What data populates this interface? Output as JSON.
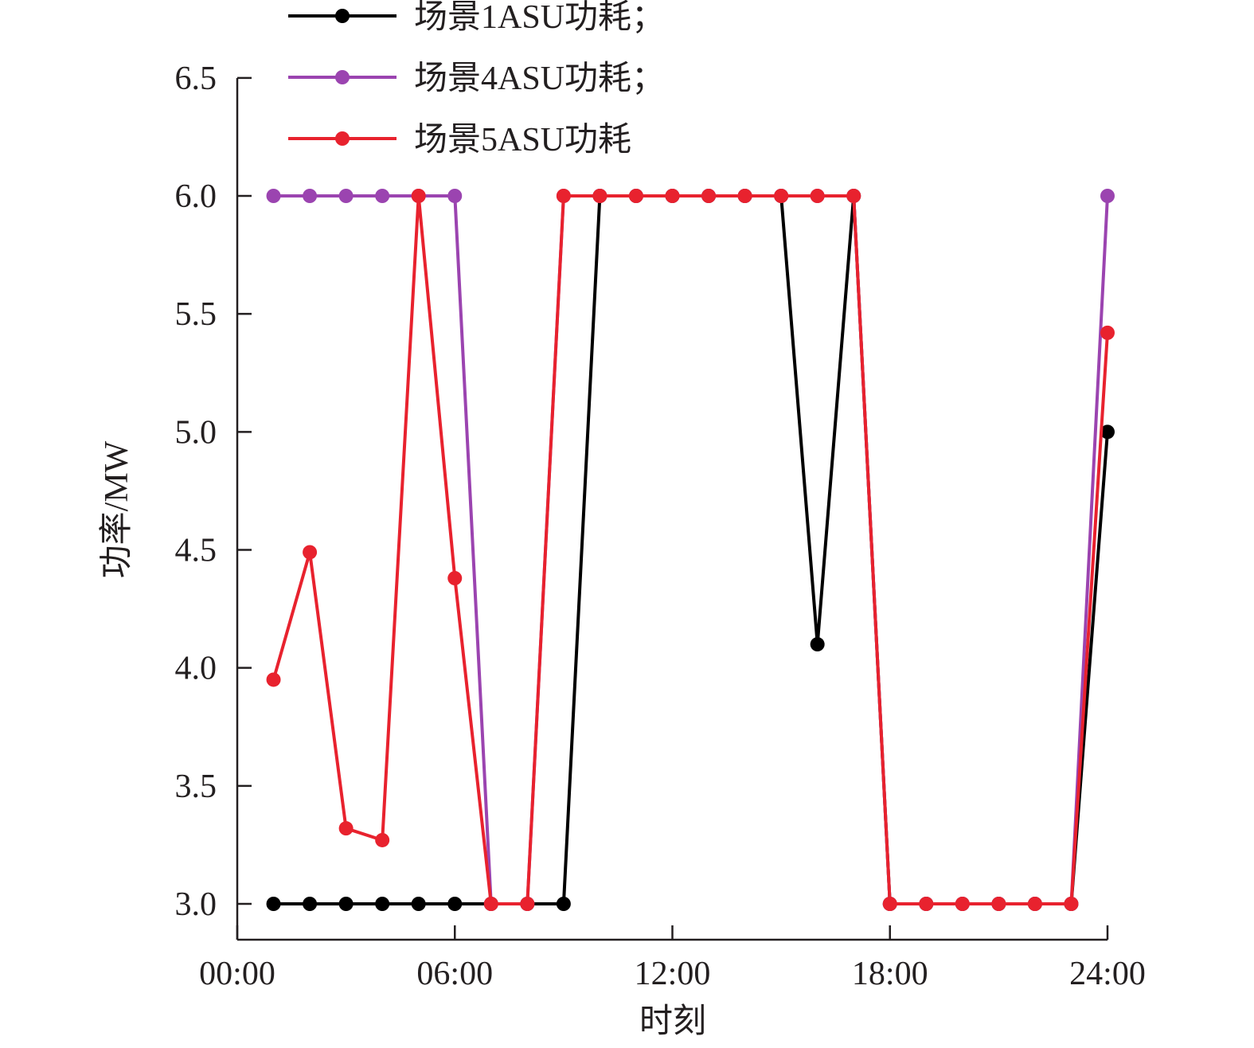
{
  "chart_data": {
    "type": "line",
    "xlabel": "时刻",
    "ylabel": "功率/MW",
    "xlim": [
      0,
      24
    ],
    "ylim": [
      2.85,
      6.5
    ],
    "x_ticks": [
      0,
      6,
      12,
      18,
      24
    ],
    "x_tick_labels": [
      "00:00",
      "06:00",
      "12:00",
      "18:00",
      "24:00"
    ],
    "y_ticks": [
      3.0,
      3.5,
      4.0,
      4.5,
      5.0,
      5.5,
      6.0,
      6.5
    ],
    "y_tick_labels": [
      "3.0",
      "3.5",
      "4.0",
      "4.5",
      "5.0",
      "5.5",
      "6.0",
      "6.5"
    ],
    "grid": false,
    "legend_position": "top-left",
    "x": [
      1,
      2,
      3,
      4,
      5,
      6,
      7,
      8,
      9,
      10,
      11,
      12,
      13,
      14,
      15,
      16,
      17,
      18,
      19,
      20,
      21,
      22,
      23,
      24
    ],
    "series": [
      {
        "name": "场景1ASU功耗；",
        "color": "#000000",
        "values": [
          3.0,
          3.0,
          3.0,
          3.0,
          3.0,
          3.0,
          3.0,
          3.0,
          3.0,
          6.0,
          6.0,
          6.0,
          6.0,
          6.0,
          6.0,
          4.1,
          6.0,
          3.0,
          3.0,
          3.0,
          3.0,
          3.0,
          3.0,
          5.0
        ]
      },
      {
        "name": "场景4ASU功耗；",
        "color": "#9b44b0",
        "values": [
          6.0,
          6.0,
          6.0,
          6.0,
          6.0,
          6.0,
          3.0,
          3.0,
          6.0,
          6.0,
          6.0,
          6.0,
          6.0,
          6.0,
          6.0,
          6.0,
          6.0,
          3.0,
          3.0,
          3.0,
          3.0,
          3.0,
          3.0,
          6.0
        ]
      },
      {
        "name": "场景5ASU功耗",
        "color": "#e8222e",
        "values": [
          3.95,
          4.49,
          3.32,
          3.27,
          6.0,
          4.38,
          3.0,
          3.0,
          6.0,
          6.0,
          6.0,
          6.0,
          6.0,
          6.0,
          6.0,
          6.0,
          6.0,
          3.0,
          3.0,
          3.0,
          3.0,
          3.0,
          3.0,
          5.42
        ]
      }
    ]
  }
}
